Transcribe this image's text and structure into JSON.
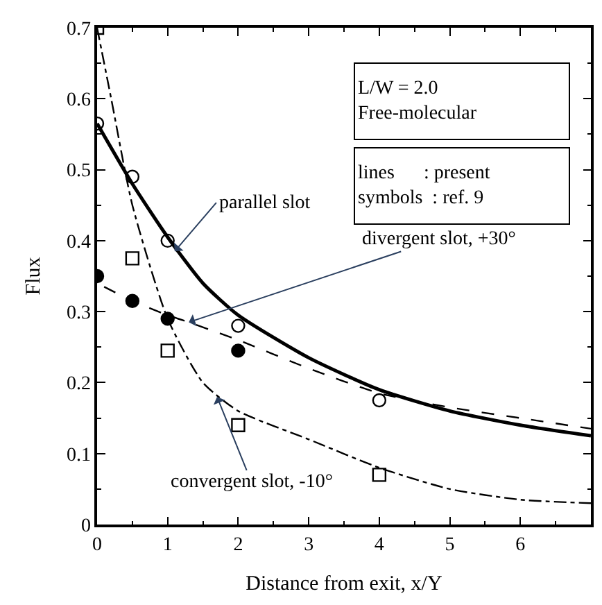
{
  "chart_data": {
    "type": "line",
    "xlabel": "Distance from exit, x/Y",
    "ylabel": "Flux",
    "xlim": [
      0,
      7
    ],
    "xticks": [
      0,
      1,
      2,
      3,
      4,
      5,
      6
    ],
    "ylim": [
      0,
      0.7
    ],
    "yticks": [
      0,
      0.1,
      0.2,
      0.3,
      0.4,
      0.5,
      0.6,
      0.7
    ],
    "series": [
      {
        "line_style": "solid",
        "color": "#000000",
        "x": [
          0,
          0.5,
          1,
          1.5,
          2,
          3,
          4,
          5,
          6,
          7
        ],
        "values": [
          0.565,
          0.48,
          0.405,
          0.34,
          0.295,
          0.235,
          0.19,
          0.16,
          0.14,
          0.125
        ]
      },
      {
        "line_style": "dashed",
        "color": "#000000",
        "x": [
          0.1,
          0.5,
          1,
          1.3,
          2,
          3,
          4,
          5,
          6,
          7
        ],
        "values": [
          0.335,
          0.315,
          0.295,
          0.285,
          0.26,
          0.22,
          0.185,
          0.165,
          0.15,
          0.135
        ]
      },
      {
        "line_style": "dashdot",
        "color": "#000000",
        "x": [
          0,
          0.2,
          0.5,
          1,
          1.5,
          2,
          3,
          4,
          5,
          6,
          7
        ],
        "values": [
          0.7,
          0.6,
          0.45,
          0.29,
          0.2,
          0.16,
          0.12,
          0.08,
          0.05,
          0.035,
          0.03
        ]
      },
      {
        "type": "scatter",
        "marker": "circle-open",
        "color": "#000000",
        "x": [
          0,
          0.5,
          1,
          2,
          4
        ],
        "values": [
          0.565,
          0.49,
          0.4,
          0.28,
          0.175
        ]
      },
      {
        "type": "scatter",
        "marker": "circle",
        "color": "#000000",
        "x": [
          0,
          0.5,
          1,
          2
        ],
        "values": [
          0.35,
          0.315,
          0.29,
          0.245
        ]
      },
      {
        "type": "scatter",
        "marker": "square-open",
        "color": "#000000",
        "x": [
          0,
          0.5,
          1,
          2,
          4
        ],
        "values": [
          0.7,
          0.375,
          0.245,
          0.14,
          0.07
        ]
      }
    ],
    "annotations": [
      {
        "text": "parallel slot",
        "x": 1.1,
        "y": 0.385
      },
      {
        "text": "divergent slot, +30°",
        "x": 1.3,
        "y": 0.285
      },
      {
        "text": "convergent slot, -10°",
        "x": 1.7,
        "y": 0.18
      },
      "L/W = 2.0\nFree-molecular",
      "lines      : present\nsymbols  : ref. 9"
    ]
  }
}
